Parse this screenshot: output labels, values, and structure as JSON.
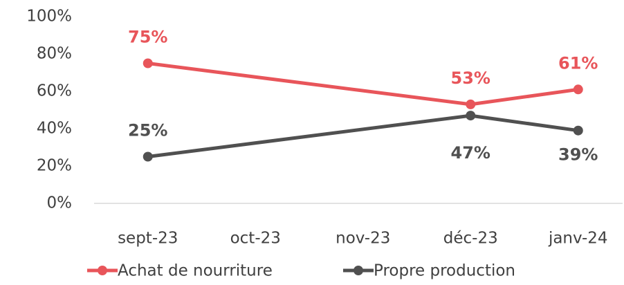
{
  "chart_data": {
    "type": "line",
    "categories": [
      "sept-23",
      "oct-23",
      "nov-23",
      "déc-23",
      "janv-24"
    ],
    "series": [
      {
        "name": "Achat de nourriture",
        "color": "#e8555a",
        "values": [
          75,
          null,
          null,
          53,
          61
        ],
        "value_labels": [
          "75%",
          null,
          null,
          "53%",
          "61%"
        ]
      },
      {
        "name": "Propre production",
        "color": "#505050",
        "values": [
          25,
          null,
          null,
          47,
          39
        ],
        "value_labels": [
          "25%",
          null,
          null,
          "47%",
          "39%"
        ]
      }
    ],
    "ylim": [
      0,
      100
    ],
    "yticks": [
      {
        "value": 0,
        "label": "0%"
      },
      {
        "value": 20,
        "label": "20%"
      },
      {
        "value": 40,
        "label": "40%"
      },
      {
        "value": 60,
        "label": "60%"
      },
      {
        "value": 80,
        "label": "80%"
      },
      {
        "value": 100,
        "label": "100%"
      }
    ],
    "grid": false
  }
}
